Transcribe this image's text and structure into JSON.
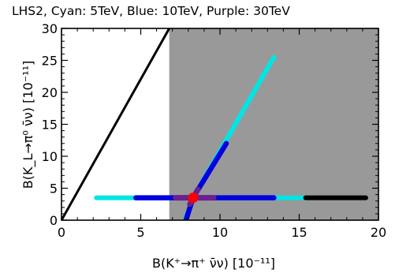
{
  "chart_data": {
    "type": "scatter",
    "title": "LHS2, Cyan: 5TeV, Blue: 10TeV, Purple: 30TeV",
    "xlabel": "B(K⁺→π⁺ ν̄ν) [10⁻¹¹]",
    "ylabel": "B(K_L→π⁰ ν̄ν) [10⁻¹¹]",
    "xlim": [
      0,
      20
    ],
    "ylim": [
      0,
      30
    ],
    "x_ticks": [
      "0",
      "5",
      "10",
      "15",
      "20"
    ],
    "x_tick_values": [
      0,
      5,
      10,
      15,
      20
    ],
    "y_ticks": [
      "0",
      "5",
      "10",
      "15",
      "20",
      "25",
      "30"
    ],
    "y_tick_values": [
      0,
      5,
      10,
      15,
      20,
      25,
      30
    ],
    "grid": false,
    "colors": {
      "excluded_region": "#999999",
      "bound_line": "#000000",
      "cyan": "#00e5e5",
      "blue": "#0000e0",
      "purple": "#6a2090",
      "black_band": "#000000",
      "sm_point": "#ff0000"
    },
    "excluded_region": {
      "x": [
        6.8,
        20
      ],
      "y": [
        0,
        30
      ]
    },
    "bound_line": {
      "x": [
        0,
        6.8
      ],
      "y": [
        0,
        30
      ]
    },
    "series": [
      {
        "color_key": "cyan",
        "segments": [
          {
            "x": [
              2.2,
              15.6
            ],
            "y": [
              3.5,
              3.5
            ]
          },
          {
            "x": [
              8.3,
              13.4
            ],
            "y": [
              3.5,
              25.5
            ]
          },
          {
            "x": [
              7.8,
              8.3
            ],
            "y": [
              0,
              3.5
            ]
          }
        ]
      },
      {
        "color_key": "black_band",
        "segments": [
          {
            "x": [
              15.4,
              19.2
            ],
            "y": [
              3.5,
              3.5
            ]
          }
        ]
      },
      {
        "color_key": "blue",
        "segments": [
          {
            "x": [
              4.7,
              13.4
            ],
            "y": [
              3.5,
              3.5
            ]
          },
          {
            "x": [
              8.3,
              10.4
            ],
            "y": [
              3.5,
              12.0
            ]
          },
          {
            "x": [
              7.85,
              8.3
            ],
            "y": [
              0,
              3.5
            ]
          }
        ]
      },
      {
        "color_key": "purple",
        "segments": [
          {
            "x": [
              7.2,
              9.6
            ],
            "y": [
              3.5,
              3.5
            ]
          },
          {
            "x": [
              8.1,
              8.6
            ],
            "y": [
              2.5,
              4.8
            ]
          }
        ]
      }
    ],
    "sm_point": {
      "x": 8.3,
      "y": 3.5
    }
  }
}
